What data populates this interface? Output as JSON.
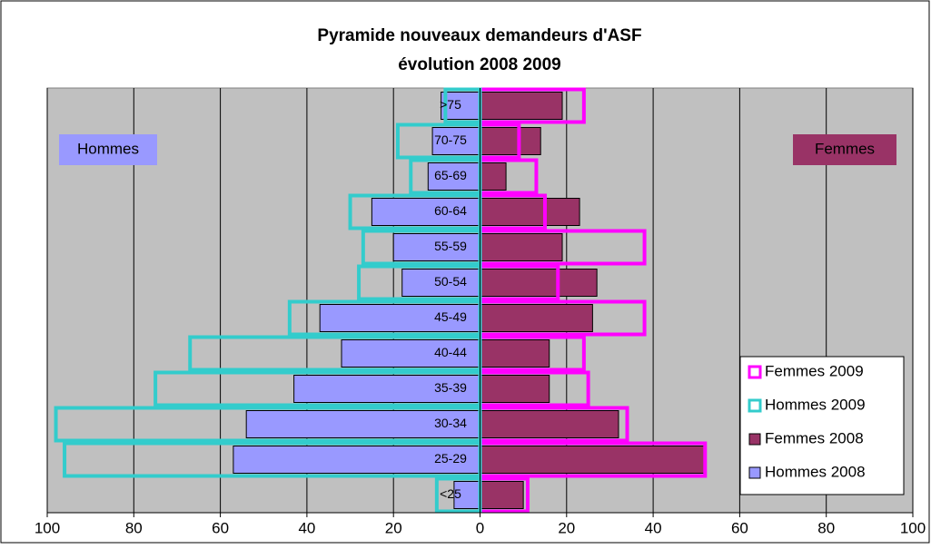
{
  "chart_data": {
    "type": "bar",
    "orientation": "horizontal",
    "title": "Pyramide nouveaux demandeurs d'ASF",
    "subtitle": "évolution 2008 2009",
    "categories": [
      "<25",
      "25-29",
      "30-34",
      "35-39",
      "40-44",
      "45-49",
      "50-54",
      "55-59",
      "60-64",
      "65-69",
      "70-75",
      ">75"
    ],
    "series": [
      {
        "name": "Femmes 2009",
        "color": "#ff00ff",
        "fill": false,
        "values": [
          11,
          52,
          34,
          25,
          24,
          38,
          18,
          38,
          15,
          13,
          9,
          24
        ]
      },
      {
        "name": "Hommes 2009",
        "color": "#33cccc",
        "fill": false,
        "values": [
          -10,
          -96,
          -98,
          -75,
          -67,
          -44,
          -28,
          -27,
          -30,
          -16,
          -19,
          -8
        ]
      },
      {
        "name": "Femmes 2008",
        "color": "#993366",
        "fill": true,
        "values": [
          10,
          52,
          32,
          16,
          16,
          26,
          27,
          19,
          23,
          6,
          14,
          19
        ]
      },
      {
        "name": "Hommes 2008",
        "color": "#9999ff",
        "fill": true,
        "values": [
          -6,
          -57,
          -54,
          -43,
          -32,
          -37,
          -18,
          -20,
          -25,
          -12,
          -11,
          -9
        ]
      }
    ],
    "xlim": [
      -100,
      100
    ],
    "xticks": [
      {
        "value": -100,
        "label": "100"
      },
      {
        "value": -80,
        "label": "80"
      },
      {
        "value": -60,
        "label": "60"
      },
      {
        "value": -40,
        "label": "40"
      },
      {
        "value": -20,
        "label": "20"
      },
      0,
      20,
      40,
      60,
      80,
      100
    ],
    "grid": true,
    "legend": "lower right",
    "annotations": [
      {
        "text": "Hommes",
        "color": "#9999ff"
      },
      {
        "text": "Femmes",
        "color": "#993366"
      }
    ]
  }
}
